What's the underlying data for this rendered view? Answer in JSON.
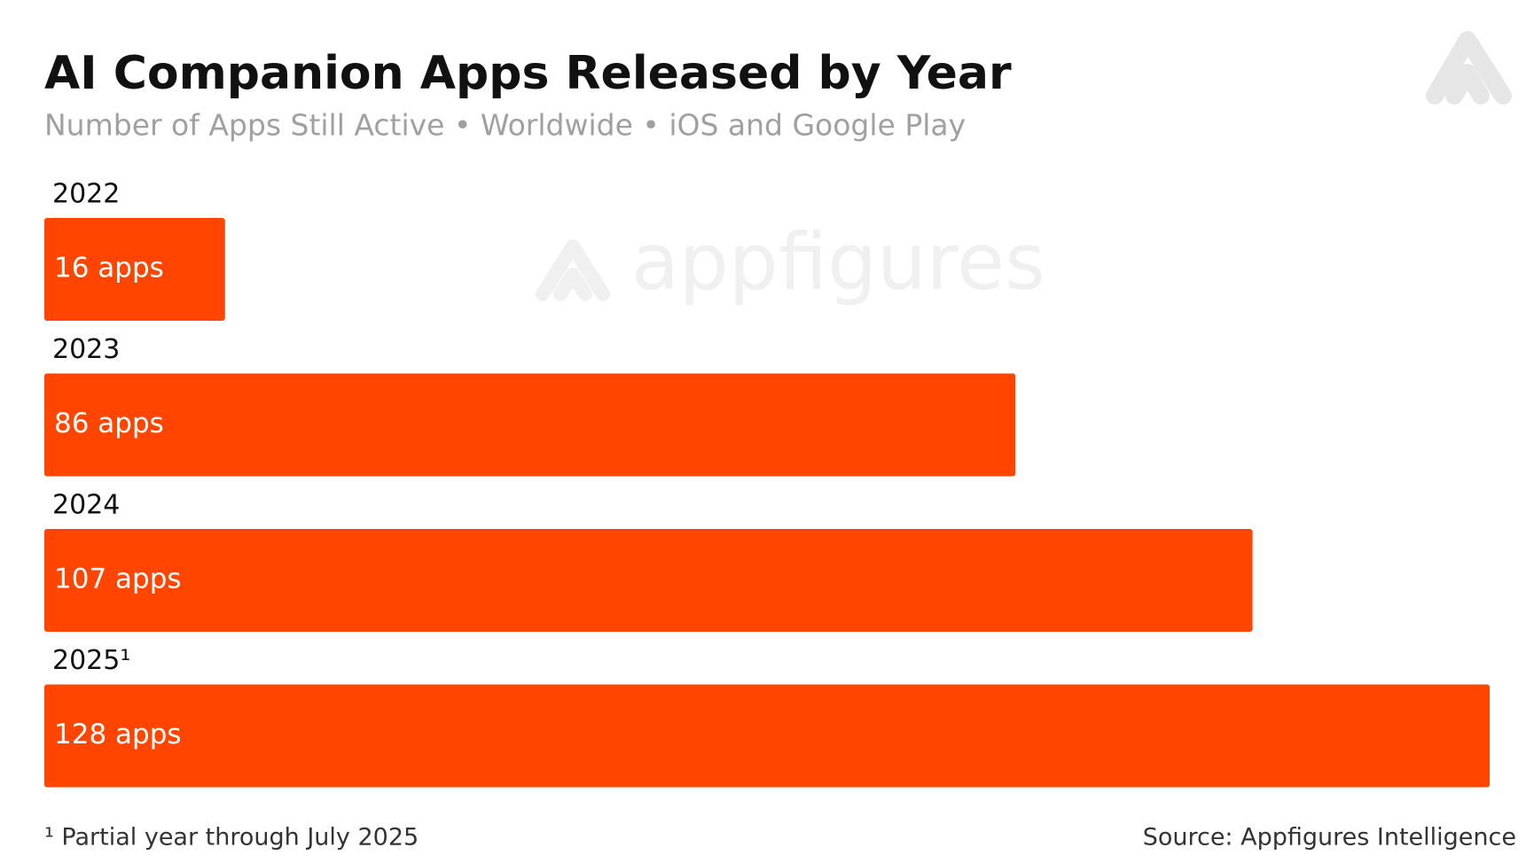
{
  "chart_data": {
    "type": "bar",
    "orientation": "horizontal",
    "title": "AI Companion Apps Released by Year",
    "subtitle": "Number of Apps Still Active • Worldwide • iOS and Google Play",
    "categories": [
      "2022",
      "2023",
      "2024",
      "2025¹"
    ],
    "values": [
      16,
      86,
      107,
      128
    ],
    "value_labels": [
      "16 apps",
      "86 apps",
      "107 apps",
      "128 apps"
    ],
    "color": "#ff4500",
    "watermark": "appfigures",
    "footnote": "¹ Partial year through July 2025",
    "source": "Source: Appfigures Intelligence"
  }
}
